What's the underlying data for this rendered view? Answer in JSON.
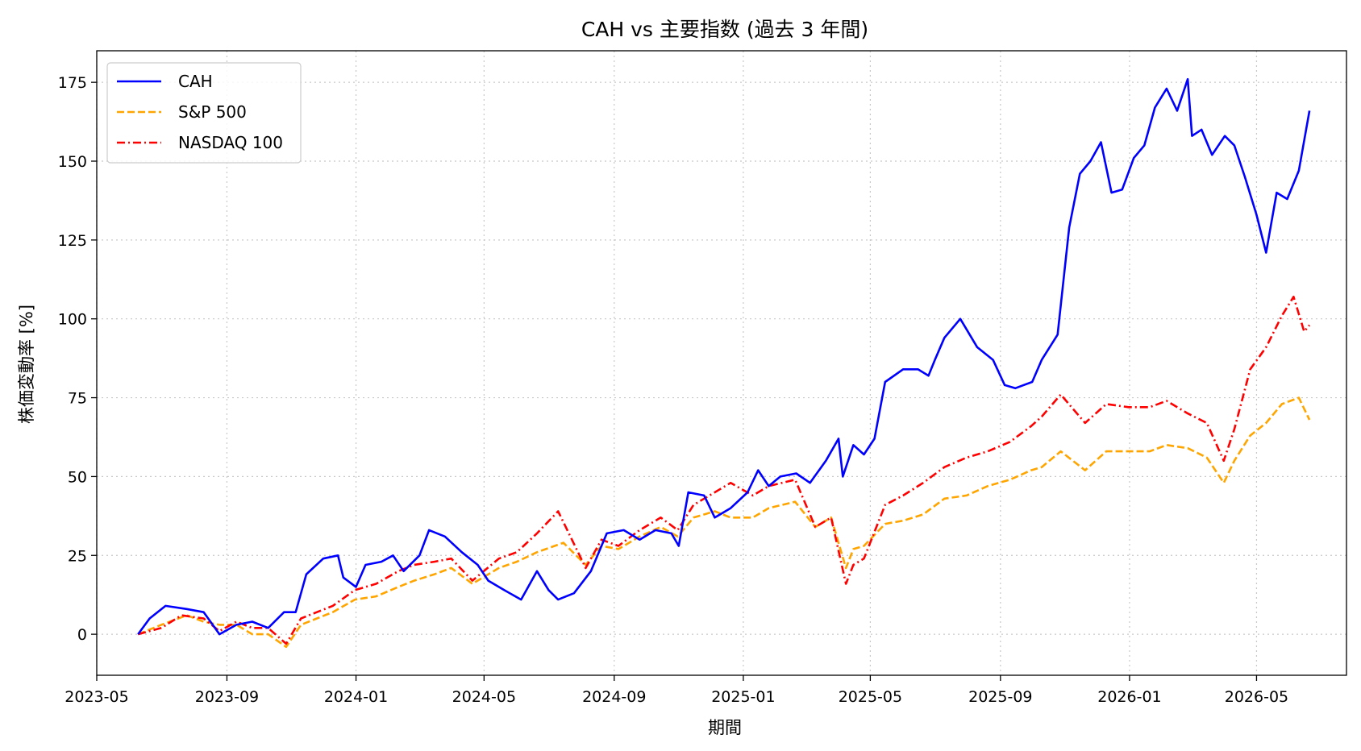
{
  "chart_data": {
    "type": "line",
    "title": "CAH vs 主要指数 (過去 3 年間)",
    "xlabel": "期間",
    "ylabel": "株価変動率 [%]",
    "ylim": [
      -13,
      185
    ],
    "xlim": [
      "2023-05-01",
      "2026-07-25"
    ],
    "grid": true,
    "legend_position": "top-left",
    "x_ticks": [
      "2023-05",
      "2023-09",
      "2024-01",
      "2024-05",
      "2024-09",
      "2025-01",
      "2025-05",
      "2025-09",
      "2026-01",
      "2026-05"
    ],
    "y_ticks": [
      0,
      25,
      50,
      75,
      100,
      125,
      150,
      175
    ],
    "series": [
      {
        "name": "CAH",
        "color": "#0000ff",
        "style": "solid",
        "points": [
          [
            "2023-06-09",
            0
          ],
          [
            "2023-06-20",
            5
          ],
          [
            "2023-07-05",
            9
          ],
          [
            "2023-07-25",
            8
          ],
          [
            "2023-08-10",
            7
          ],
          [
            "2023-08-25",
            0
          ],
          [
            "2023-09-10",
            3
          ],
          [
            "2023-09-25",
            4
          ],
          [
            "2023-10-10",
            2
          ],
          [
            "2023-10-25",
            7
          ],
          [
            "2023-11-05",
            7
          ],
          [
            "2023-11-15",
            19
          ],
          [
            "2023-12-01",
            24
          ],
          [
            "2023-12-15",
            25
          ],
          [
            "2023-12-20",
            18
          ],
          [
            "2024-01-01",
            15
          ],
          [
            "2024-01-10",
            22
          ],
          [
            "2024-01-25",
            23
          ],
          [
            "2024-02-05",
            25
          ],
          [
            "2024-02-15",
            20
          ],
          [
            "2024-03-01",
            25
          ],
          [
            "2024-03-10",
            33
          ],
          [
            "2024-03-25",
            31
          ],
          [
            "2024-04-10",
            26
          ],
          [
            "2024-04-25",
            22
          ],
          [
            "2024-05-05",
            17
          ],
          [
            "2024-05-20",
            14
          ],
          [
            "2024-06-05",
            11
          ],
          [
            "2024-06-20",
            20
          ],
          [
            "2024-07-01",
            14
          ],
          [
            "2024-07-10",
            11
          ],
          [
            "2024-07-25",
            13
          ],
          [
            "2024-08-10",
            20
          ],
          [
            "2024-08-25",
            32
          ],
          [
            "2024-09-10",
            33
          ],
          [
            "2024-09-25",
            30
          ],
          [
            "2024-10-10",
            33
          ],
          [
            "2024-10-25",
            32
          ],
          [
            "2024-11-01",
            28
          ],
          [
            "2024-11-10",
            45
          ],
          [
            "2024-11-25",
            44
          ],
          [
            "2024-12-05",
            37
          ],
          [
            "2024-12-20",
            40
          ],
          [
            "2025-01-05",
            45
          ],
          [
            "2025-01-15",
            52
          ],
          [
            "2025-01-25",
            47
          ],
          [
            "2025-02-05",
            50
          ],
          [
            "2025-02-20",
            51
          ],
          [
            "2025-03-05",
            48
          ],
          [
            "2025-03-20",
            55
          ],
          [
            "2025-04-01",
            62
          ],
          [
            "2025-04-05",
            50
          ],
          [
            "2025-04-15",
            60
          ],
          [
            "2025-04-25",
            57
          ],
          [
            "2025-05-05",
            62
          ],
          [
            "2025-05-15",
            80
          ],
          [
            "2025-06-01",
            84
          ],
          [
            "2025-06-15",
            84
          ],
          [
            "2025-06-25",
            82
          ],
          [
            "2025-07-01",
            87
          ],
          [
            "2025-07-10",
            94
          ],
          [
            "2025-07-25",
            100
          ],
          [
            "2025-08-10",
            91
          ],
          [
            "2025-08-25",
            87
          ],
          [
            "2025-09-05",
            79
          ],
          [
            "2025-09-15",
            78
          ],
          [
            "2025-10-01",
            80
          ],
          [
            "2025-10-10",
            87
          ],
          [
            "2025-10-25",
            95
          ],
          [
            "2025-11-05",
            129
          ],
          [
            "2025-11-15",
            146
          ],
          [
            "2025-11-25",
            150
          ],
          [
            "2025-12-05",
            156
          ],
          [
            "2025-12-15",
            140
          ],
          [
            "2025-12-25",
            141
          ],
          [
            "2026-01-05",
            151
          ],
          [
            "2026-01-15",
            155
          ],
          [
            "2026-01-25",
            167
          ],
          [
            "2026-02-05",
            173
          ],
          [
            "2026-02-15",
            166
          ],
          [
            "2026-02-25",
            176
          ],
          [
            "2026-03-01",
            158
          ],
          [
            "2026-03-10",
            160
          ],
          [
            "2026-03-20",
            152
          ],
          [
            "2026-04-01",
            158
          ],
          [
            "2026-04-10",
            155
          ],
          [
            "2026-04-20",
            145
          ],
          [
            "2026-05-01",
            133
          ],
          [
            "2026-05-10",
            121
          ],
          [
            "2026-05-20",
            140
          ],
          [
            "2026-05-30",
            138
          ],
          [
            "2026-06-10",
            147
          ],
          [
            "2026-06-20",
            166
          ]
        ]
      },
      {
        "name": "S&P 500",
        "color": "#ffa500",
        "style": "dashed",
        "points": [
          [
            "2023-06-09",
            0
          ],
          [
            "2023-07-01",
            3
          ],
          [
            "2023-07-25",
            6
          ],
          [
            "2023-08-10",
            4
          ],
          [
            "2023-08-25",
            3
          ],
          [
            "2023-09-10",
            3
          ],
          [
            "2023-09-25",
            0
          ],
          [
            "2023-10-10",
            0
          ],
          [
            "2023-10-27",
            -4
          ],
          [
            "2023-11-10",
            3
          ],
          [
            "2023-11-25",
            5
          ],
          [
            "2023-12-10",
            7
          ],
          [
            "2023-12-31",
            11
          ],
          [
            "2024-01-20",
            12
          ],
          [
            "2024-02-10",
            15
          ],
          [
            "2024-02-25",
            17
          ],
          [
            "2024-03-15",
            19
          ],
          [
            "2024-03-31",
            21
          ],
          [
            "2024-04-20",
            16
          ],
          [
            "2024-05-15",
            21
          ],
          [
            "2024-06-01",
            23
          ],
          [
            "2024-06-20",
            26
          ],
          [
            "2024-07-15",
            29
          ],
          [
            "2024-08-05",
            22
          ],
          [
            "2024-08-20",
            28
          ],
          [
            "2024-09-05",
            27
          ],
          [
            "2024-09-25",
            31
          ],
          [
            "2024-10-15",
            34
          ],
          [
            "2024-10-31",
            31
          ],
          [
            "2024-11-15",
            37
          ],
          [
            "2024-12-05",
            39
          ],
          [
            "2024-12-20",
            37
          ],
          [
            "2025-01-10",
            37
          ],
          [
            "2025-01-25",
            40
          ],
          [
            "2025-02-19",
            42
          ],
          [
            "2025-03-10",
            34
          ],
          [
            "2025-03-25",
            37
          ],
          [
            "2025-04-08",
            21
          ],
          [
            "2025-04-15",
            27
          ],
          [
            "2025-04-25",
            28
          ],
          [
            "2025-05-15",
            35
          ],
          [
            "2025-06-01",
            36
          ],
          [
            "2025-06-20",
            38
          ],
          [
            "2025-07-10",
            43
          ],
          [
            "2025-07-31",
            44
          ],
          [
            "2025-08-20",
            47
          ],
          [
            "2025-09-10",
            49
          ],
          [
            "2025-09-30",
            52
          ],
          [
            "2025-10-10",
            53
          ],
          [
            "2025-10-28",
            58
          ],
          [
            "2025-11-20",
            52
          ],
          [
            "2025-12-10",
            58
          ],
          [
            "2025-12-31",
            58
          ],
          [
            "2026-01-20",
            58
          ],
          [
            "2026-02-05",
            60
          ],
          [
            "2026-02-25",
            59
          ],
          [
            "2026-03-15",
            56
          ],
          [
            "2026-03-31",
            48
          ],
          [
            "2026-04-10",
            55
          ],
          [
            "2026-04-25",
            63
          ],
          [
            "2026-05-10",
            67
          ],
          [
            "2026-05-25",
            73
          ],
          [
            "2026-06-10",
            75
          ],
          [
            "2026-06-20",
            68
          ]
        ]
      },
      {
        "name": "NASDAQ 100",
        "color": "#ff0000",
        "style": "dashdot",
        "points": [
          [
            "2023-06-09",
            0
          ],
          [
            "2023-07-01",
            2
          ],
          [
            "2023-07-20",
            6
          ],
          [
            "2023-08-10",
            5
          ],
          [
            "2023-08-25",
            1
          ],
          [
            "2023-09-10",
            4
          ],
          [
            "2023-09-25",
            2
          ],
          [
            "2023-10-10",
            2
          ],
          [
            "2023-10-27",
            -3
          ],
          [
            "2023-11-10",
            5
          ],
          [
            "2023-11-25",
            7
          ],
          [
            "2023-12-10",
            9
          ],
          [
            "2023-12-31",
            14
          ],
          [
            "2024-01-20",
            16
          ],
          [
            "2024-02-10",
            20
          ],
          [
            "2024-02-25",
            22
          ],
          [
            "2024-03-15",
            23
          ],
          [
            "2024-03-31",
            24
          ],
          [
            "2024-04-20",
            17
          ],
          [
            "2024-05-15",
            24
          ],
          [
            "2024-06-01",
            26
          ],
          [
            "2024-06-20",
            32
          ],
          [
            "2024-07-10",
            39
          ],
          [
            "2024-08-05",
            21
          ],
          [
            "2024-08-20",
            30
          ],
          [
            "2024-09-05",
            28
          ],
          [
            "2024-09-25",
            33
          ],
          [
            "2024-10-15",
            37
          ],
          [
            "2024-10-31",
            33
          ],
          [
            "2024-11-15",
            41
          ],
          [
            "2024-12-05",
            45
          ],
          [
            "2024-12-20",
            48
          ],
          [
            "2025-01-10",
            44
          ],
          [
            "2025-01-25",
            47
          ],
          [
            "2025-02-19",
            49
          ],
          [
            "2025-03-10",
            34
          ],
          [
            "2025-03-25",
            37
          ],
          [
            "2025-04-08",
            16
          ],
          [
            "2025-04-15",
            22
          ],
          [
            "2025-04-25",
            24
          ],
          [
            "2025-05-15",
            41
          ],
          [
            "2025-06-01",
            44
          ],
          [
            "2025-06-20",
            48
          ],
          [
            "2025-07-10",
            53
          ],
          [
            "2025-07-31",
            56
          ],
          [
            "2025-08-20",
            58
          ],
          [
            "2025-09-10",
            61
          ],
          [
            "2025-09-30",
            66
          ],
          [
            "2025-10-10",
            69
          ],
          [
            "2025-10-28",
            76
          ],
          [
            "2025-11-20",
            67
          ],
          [
            "2025-12-10",
            73
          ],
          [
            "2025-12-31",
            72
          ],
          [
            "2026-01-20",
            72
          ],
          [
            "2026-02-05",
            74
          ],
          [
            "2026-02-25",
            70
          ],
          [
            "2026-03-15",
            67
          ],
          [
            "2026-03-31",
            55
          ],
          [
            "2026-04-10",
            65
          ],
          [
            "2026-04-25",
            84
          ],
          [
            "2026-05-10",
            91
          ],
          [
            "2026-05-25",
            101
          ],
          [
            "2026-06-05",
            107
          ],
          [
            "2026-06-15",
            96
          ],
          [
            "2026-06-20",
            98
          ]
        ]
      }
    ]
  }
}
